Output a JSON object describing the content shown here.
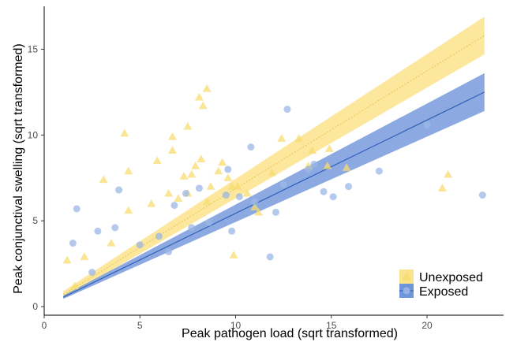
{
  "chart_data": {
    "type": "scatter",
    "title": "",
    "xlabel": "Peak pathogen load (sqrt transformed)",
    "ylabel": "Peak conjunctival swelling (sqrt transformed)",
    "xlim": [
      0,
      24
    ],
    "ylim": [
      -0.5,
      17.5
    ],
    "xticks": [
      0,
      5,
      10,
      15,
      20
    ],
    "yticks": [
      0,
      5,
      10,
      15
    ],
    "xtick_labels": [
      "0",
      "5",
      "10",
      "15",
      "20"
    ],
    "ytick_labels": [
      "0",
      "5",
      "10",
      "15"
    ],
    "grid": false,
    "legend_position": "bottom-right",
    "series": [
      {
        "name": "Unexposed",
        "marker": "triangle",
        "color": "#f7dc6f",
        "band_color": "#fbe38c",
        "line_color": "#e6c84a",
        "line_style": "dotted",
        "fit": {
          "x": [
            1,
            23
          ],
          "y": [
            0.7,
            15.8
          ]
        },
        "band": {
          "x": [
            1,
            23
          ],
          "lower": [
            0.5,
            14.7
          ],
          "upper": [
            0.9,
            16.9
          ]
        },
        "points": [
          [
            1.2,
            2.7
          ],
          [
            1.6,
            1.2
          ],
          [
            2.1,
            2.9
          ],
          [
            3.1,
            7.4
          ],
          [
            3.5,
            3.7
          ],
          [
            4.2,
            10.1
          ],
          [
            4.4,
            7.9
          ],
          [
            4.4,
            5.6
          ],
          [
            5.6,
            6.0
          ],
          [
            5.9,
            8.5
          ],
          [
            6.5,
            6.6
          ],
          [
            6.7,
            9.1
          ],
          [
            6.7,
            9.9
          ],
          [
            7.0,
            6.3
          ],
          [
            7.3,
            7.6
          ],
          [
            7.5,
            10.5
          ],
          [
            7.5,
            6.6
          ],
          [
            7.7,
            7.7
          ],
          [
            7.9,
            8.2
          ],
          [
            8.1,
            12.2
          ],
          [
            8.3,
            11.7
          ],
          [
            8.5,
            12.7
          ],
          [
            8.2,
            8.6
          ],
          [
            8.5,
            6.1
          ],
          [
            8.7,
            7.0
          ],
          [
            9.1,
            7.9
          ],
          [
            9.3,
            8.4
          ],
          [
            9.6,
            7.5
          ],
          [
            9.8,
            7.0
          ],
          [
            9.9,
            3.0
          ],
          [
            10.1,
            7.0
          ],
          [
            10.6,
            6.6
          ],
          [
            11.0,
            5.8
          ],
          [
            11.2,
            5.5
          ],
          [
            11.9,
            7.8
          ],
          [
            12.4,
            9.8
          ],
          [
            13.3,
            9.8
          ],
          [
            13.8,
            8.2
          ],
          [
            14.0,
            9.1
          ],
          [
            14.8,
            8.2
          ],
          [
            14.9,
            9.2
          ],
          [
            15.8,
            8.1
          ],
          [
            20.8,
            6.9
          ],
          [
            21.1,
            7.7
          ]
        ]
      },
      {
        "name": "Exposed",
        "marker": "circle",
        "color": "#9bb7e4",
        "band_color": "#6f95da",
        "line_color": "#2f5fb8",
        "line_style": "solid",
        "fit": {
          "x": [
            1,
            23
          ],
          "y": [
            0.55,
            12.5
          ]
        },
        "band": {
          "x": [
            1,
            23
          ],
          "lower": [
            0.45,
            11.4
          ],
          "upper": [
            0.65,
            13.6
          ]
        },
        "points": [
          [
            1.5,
            3.7
          ],
          [
            1.7,
            5.7
          ],
          [
            2.5,
            2.0
          ],
          [
            2.8,
            4.4
          ],
          [
            3.7,
            4.6
          ],
          [
            3.9,
            6.8
          ],
          [
            5.0,
            3.6
          ],
          [
            6.0,
            4.1
          ],
          [
            6.5,
            3.2
          ],
          [
            6.8,
            5.9
          ],
          [
            7.4,
            6.6
          ],
          [
            7.7,
            4.6
          ],
          [
            8.1,
            6.9
          ],
          [
            8.6,
            4.9
          ],
          [
            9.5,
            6.5
          ],
          [
            9.6,
            8.0
          ],
          [
            9.8,
            4.4
          ],
          [
            10.2,
            6.4
          ],
          [
            10.8,
            9.3
          ],
          [
            11.0,
            6.1
          ],
          [
            11.8,
            2.9
          ],
          [
            12.1,
            5.5
          ],
          [
            12.5,
            7.1
          ],
          [
            12.7,
            11.5
          ],
          [
            13.8,
            8.0
          ],
          [
            14.1,
            8.3
          ],
          [
            14.6,
            6.7
          ],
          [
            15.1,
            6.4
          ],
          [
            15.9,
            7.0
          ],
          [
            17.5,
            7.9
          ],
          [
            20.0,
            10.6
          ],
          [
            22.9,
            6.5
          ]
        ]
      }
    ]
  }
}
